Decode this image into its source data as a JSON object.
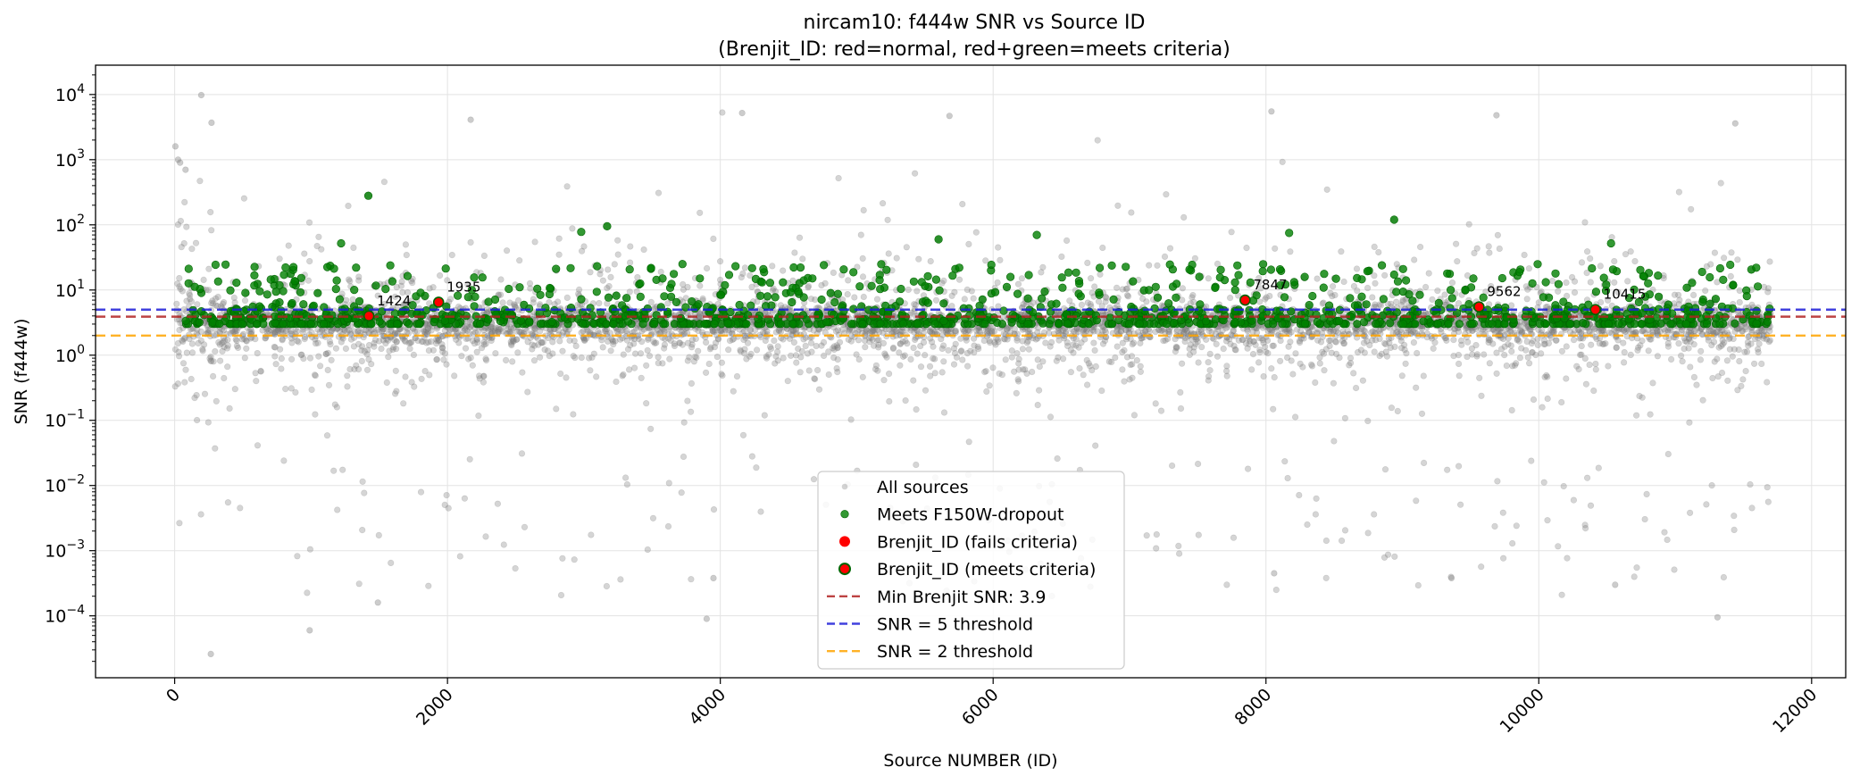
{
  "chart_data": {
    "type": "scatter",
    "title_line1": "nircam10: f444w SNR vs Source ID",
    "title_line2": "(Brenjit_ID: red=normal, red+green=meets criteria)",
    "xlabel": "Source NUMBER (ID)",
    "ylabel": "SNR (f444w)",
    "xlim": [
      -580,
      12250
    ],
    "ylim_log10": [
      -4.95,
      4.45
    ],
    "y_scale": "log",
    "grid": true,
    "x_ticks": [
      {
        "value": 0,
        "label": "0"
      },
      {
        "value": 2000,
        "label": "2000"
      },
      {
        "value": 4000,
        "label": "4000"
      },
      {
        "value": 6000,
        "label": "6000"
      },
      {
        "value": 8000,
        "label": "8000"
      },
      {
        "value": 10000,
        "label": "10000"
      },
      {
        "value": 12000,
        "label": "12000"
      }
    ],
    "y_ticks": [
      {
        "exp": -4,
        "base": "10",
        "sup": "−4"
      },
      {
        "exp": -3,
        "base": "10",
        "sup": "−3"
      },
      {
        "exp": -2,
        "base": "10",
        "sup": "−2"
      },
      {
        "exp": -1,
        "base": "10",
        "sup": "−1"
      },
      {
        "exp": 0,
        "base": "10",
        "sup": "0"
      },
      {
        "exp": 1,
        "base": "10",
        "sup": "1"
      },
      {
        "exp": 2,
        "base": "10",
        "sup": "2"
      },
      {
        "exp": 3,
        "base": "10",
        "sup": "3"
      },
      {
        "exp": 4,
        "base": "10",
        "sup": "4"
      }
    ],
    "source_id_range": [
      0,
      11700
    ],
    "series": [
      {
        "name": "All sources",
        "color": "#808080",
        "marker": "circle-small",
        "alpha": 0.35,
        "approx_count": 11700
      },
      {
        "name": "Meets F150W-dropout",
        "color": "#008000",
        "marker": "circle",
        "alpha": 0.8,
        "approx_count": 1300
      },
      {
        "name": "Brenjit_ID (fails criteria)",
        "color": "#ff0000",
        "marker": "circle-large"
      },
      {
        "name": "Brenjit_ID (meets criteria)",
        "color": "#ff0000",
        "edge_color": "#006400",
        "marker": "circle-large"
      }
    ],
    "highlighted_ids": [
      {
        "id": 1424,
        "snr": 4.0,
        "label": "1424"
      },
      {
        "id": 1935,
        "snr": 6.5,
        "label": "1935"
      },
      {
        "id": 7847,
        "snr": 7.0,
        "label": "7847"
      },
      {
        "id": 9562,
        "snr": 5.5,
        "label": "9562"
      },
      {
        "id": 10415,
        "snr": 5.0,
        "label": "10415"
      }
    ],
    "notable_points": [
      {
        "x": 5,
        "y": 1600
      },
      {
        "x": 25,
        "y": 1000
      },
      {
        "x": 40,
        "y": 900
      },
      {
        "x": 80,
        "y": 700
      },
      {
        "x": 195,
        "y": 9800
      },
      {
        "x": 270,
        "y": 3700
      },
      {
        "x": 265,
        "y": 2.6e-05
      },
      {
        "x": 2170,
        "y": 4100
      },
      {
        "x": 4160,
        "y": 5200
      },
      {
        "x": 5680,
        "y": 4700
      },
      {
        "x": 8040,
        "y": 5500
      },
      {
        "x": 9690,
        "y": 4800
      },
      {
        "x": 11440,
        "y": 3600
      },
      {
        "x": 990,
        "y": 6e-05
      },
      {
        "x": 1490,
        "y": 0.00016
      },
      {
        "x": 3900,
        "y": 9e-05
      },
      {
        "x": 3950,
        "y": 0.00038
      },
      {
        "x": 9360,
        "y": 0.00038
      },
      {
        "x": 11310,
        "y": 9.5e-05
      },
      {
        "x": 10560,
        "y": 0.0003
      },
      {
        "x": 8060,
        "y": 0.00045
      },
      {
        "x": 1420,
        "y": 280
      },
      {
        "x": 3170,
        "y": 95
      },
      {
        "x": 8940,
        "y": 120
      },
      {
        "x": 5600,
        "y": 60
      }
    ],
    "hlines": [
      {
        "y": 3.9,
        "color": "#b22222",
        "label": "Min Brenjit SNR: 3.9"
      },
      {
        "y": 5,
        "color": "#1f1fd8",
        "label": "SNR = 5 threshold"
      },
      {
        "y": 2,
        "color": "#ffa500",
        "label": "SNR = 2 threshold"
      }
    ],
    "legend_position": "lower center"
  }
}
